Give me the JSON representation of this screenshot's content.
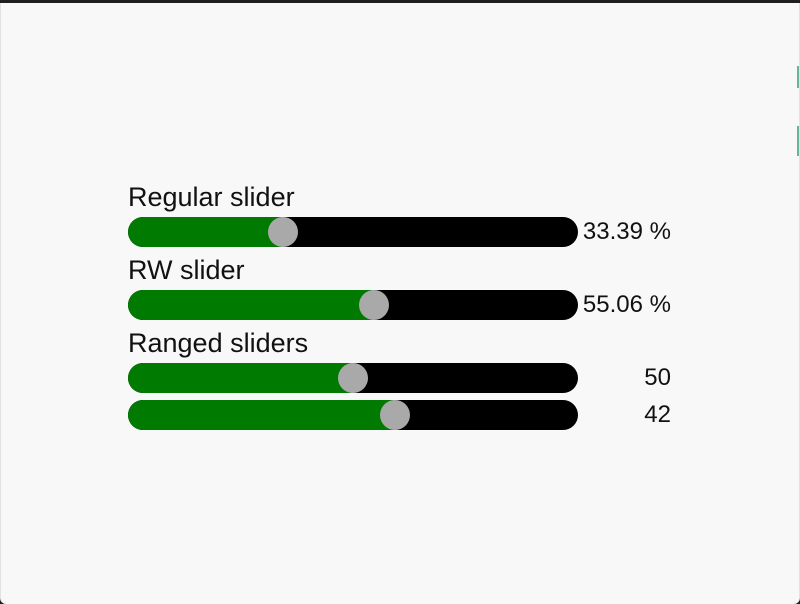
{
  "sliders": {
    "regular": {
      "label": "Regular slider",
      "value_text": "33.39 %",
      "fraction": 0.3339
    },
    "rw": {
      "label": "RW slider",
      "value_text": "55.06 %",
      "fraction": 0.5506
    },
    "ranged": {
      "label": "Ranged sliders",
      "items": [
        {
          "value_text": "50",
          "fraction": 0.5
        },
        {
          "value_text": "42",
          "fraction": 0.6
        }
      ]
    }
  },
  "colors": {
    "fill": "#007a00",
    "track": "#000000",
    "thumb": "#a9a9a9",
    "background": "#f8f8f8"
  }
}
